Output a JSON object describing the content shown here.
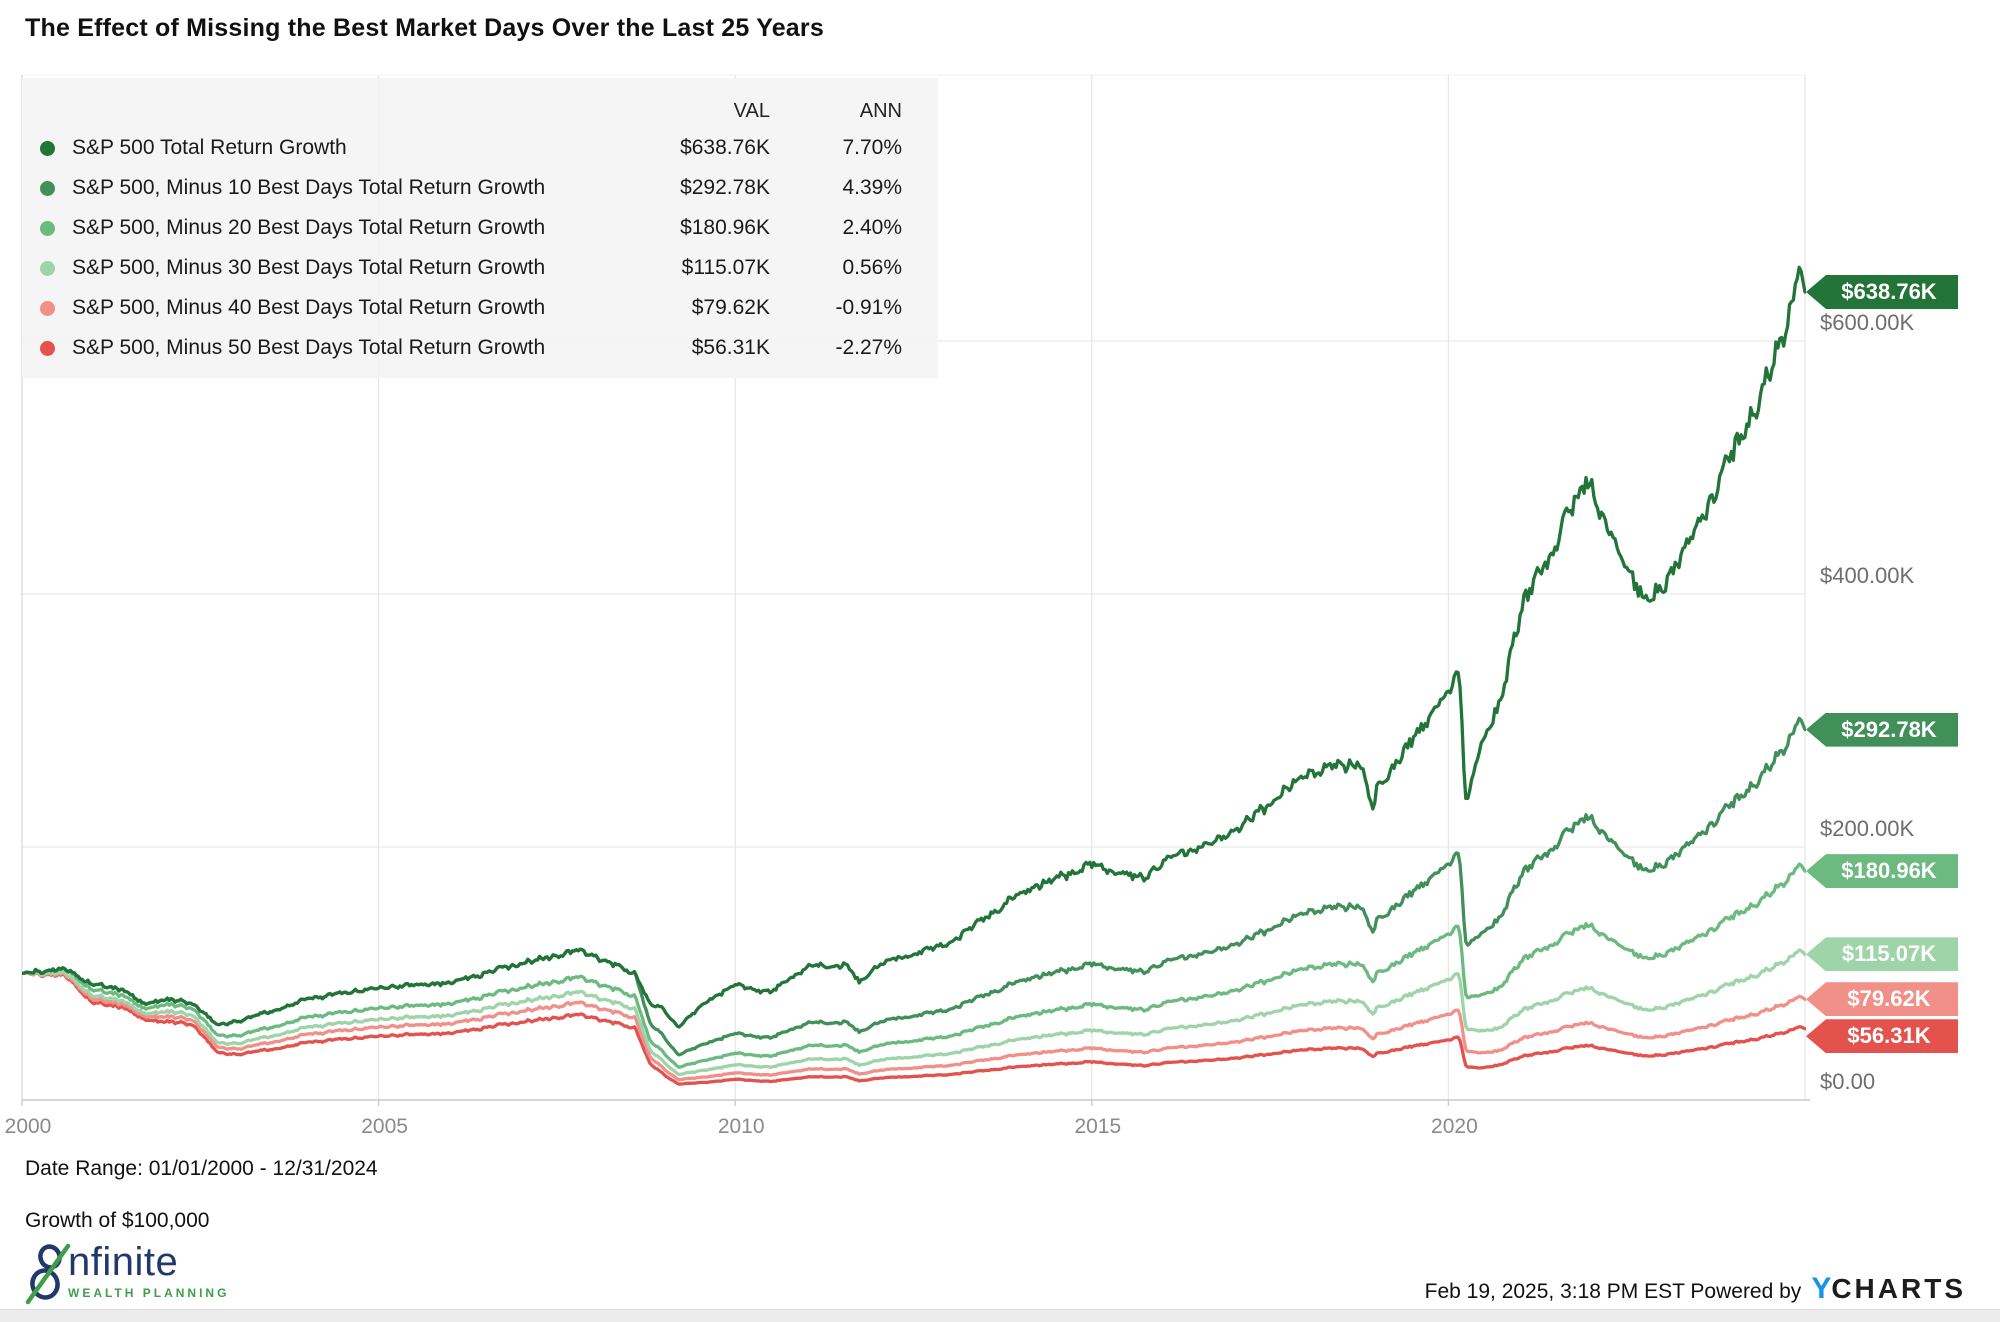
{
  "title": "The Effect of Missing the Best Market Days Over the Last 25 Years",
  "legend": {
    "col_val": "VAL",
    "col_ann": "ANN",
    "rows": [
      {
        "label": "S&P 500 Total Return Growth",
        "val": "$638.76K",
        "ann": "7.70%",
        "color": "#227438"
      },
      {
        "label": "S&P 500, Minus 10 Best Days Total Return Growth",
        "val": "$292.78K",
        "ann": "4.39%",
        "color": "#41905a"
      },
      {
        "label": "S&P 500, Minus 20 Best Days Total Return Growth",
        "val": "$180.96K",
        "ann": "2.40%",
        "color": "#6cba7f"
      },
      {
        "label": "S&P 500, Minus 30 Best Days Total Return Growth",
        "val": "$115.07K",
        "ann": "0.56%",
        "color": "#9fd3a8"
      },
      {
        "label": "S&P 500, Minus 40 Best Days Total Return Growth",
        "val": "$79.62K",
        "ann": "-0.91%",
        "color": "#f19089"
      },
      {
        "label": "S&P 500, Minus 50 Best Days Total Return Growth",
        "val": "$56.31K",
        "ann": "-2.27%",
        "color": "#e4524e"
      }
    ]
  },
  "footer": {
    "date_range": "Date Range: 01/01/2000 - 12/31/2024",
    "growth_label": "Growth of $100,000",
    "timestamp": "Feb 19, 2025, 3:18 PM EST Powered by",
    "ycharts_y": "Y",
    "ycharts_rest": "CHARTS"
  },
  "logo": {
    "brand": "infinite",
    "wordmark_display": "nfinite",
    "tagline": "WEALTH PLANNING",
    "navy": "#21386b",
    "green": "#3f9e4a"
  },
  "chart_data": {
    "type": "line",
    "title": "The Effect of Missing the Best Market Days Over the Last 25 Years",
    "subtitle": "Growth of $100,000, 01/01/2000 - 12/31/2024",
    "xlim": [
      2000,
      2025
    ],
    "ylim": [
      0,
      810
    ],
    "grid": true,
    "legend_position": "top-left",
    "x_axis": {
      "ticks": [
        {
          "label": "2000",
          "year": 2000
        },
        {
          "label": "2005",
          "year": 2005
        },
        {
          "label": "2010",
          "year": 2010
        },
        {
          "label": "2015",
          "year": 2015
        },
        {
          "label": "2020",
          "year": 2020
        }
      ]
    },
    "y_axis": {
      "ticks": [
        {
          "label": "$0.00",
          "value": 0
        },
        {
          "label": "$200.00K",
          "value": 200
        },
        {
          "label": "$400.00K",
          "value": 400
        },
        {
          "label": "$600.00K",
          "value": 600
        }
      ]
    },
    "grid_years": [
      2005,
      2010,
      2015,
      2020,
      2025
    ],
    "x_anchors": [
      2000.0,
      2000.6,
      2001.0,
      2001.45,
      2001.7,
      2002.0,
      2002.4,
      2002.75,
      2003.0,
      2003.6,
      2004.0,
      2005.0,
      2006.0,
      2007.0,
      2007.8,
      2008.0,
      2008.6,
      2008.8,
      2009.0,
      2009.2,
      2009.6,
      2010.0,
      2010.5,
      2011.0,
      2011.55,
      2011.75,
      2012.0,
      2013.0,
      2014.0,
      2015.0,
      2015.7,
      2016.0,
      2017.0,
      2018.0,
      2018.75,
      2018.95,
      2019.0,
      2019.5,
      2020.0,
      2020.15,
      2020.25,
      2020.45,
      2020.7,
      2021.0,
      2021.5,
      2021.95,
      2022.2,
      2022.5,
      2022.78,
      2023.0,
      2023.6,
      2024.0,
      2024.4,
      2024.75,
      2024.92,
      2025.0
    ],
    "series": [
      {
        "name": "S&P 500 Total Return Growth",
        "flag_label": "$638.76K",
        "final_value": 638.76,
        "ann_return_pct": 7.7,
        "color": "#227438",
        "values": [
          100,
          104,
          91,
          87,
          75,
          80,
          76,
          59,
          62,
          72,
          80,
          89,
          93,
          108,
          118,
          114,
          100,
          76,
          72,
          57,
          78,
          91,
          85,
          105,
          107,
          92,
          107,
          124,
          164,
          186,
          175,
          189,
          212,
          258,
          268,
          230,
          247,
          285,
          324,
          338,
          233,
          280,
          310,
          384,
          440,
          494,
          455,
          420,
          393,
          405,
          465,
          511,
          560,
          610,
          660,
          638.76
        ]
      },
      {
        "name": "S&P 500, Minus 10 Best Days Total Return Growth",
        "flag_label": "$292.78K",
        "final_value": 292.78,
        "ann_return_pct": 4.39,
        "color": "#41905a",
        "values": [
          100,
          104,
          91,
          87,
          75,
          80,
          76,
          59,
          62,
          72,
          80,
          89,
          93,
          108,
          118,
          114,
          100,
          60.8,
          50.4,
          35.3,
          45.0,
          52.5,
          49.0,
          60.6,
          61.7,
          53.1,
          61.7,
          71.5,
          94.6,
          107.3,
          101.0,
          109.1,
          122.3,
          148.9,
          154.6,
          132.7,
          142.5,
          164.4,
          187.0,
          195.0,
          121.2,
          131.0,
          142.1,
          176.0,
          201.7,
          226.4,
          208.6,
          192.5,
          180.2,
          185.7,
          213.2,
          234.2,
          256.7,
          279.6,
          302.5,
          292.78
        ]
      },
      {
        "name": "S&P 500, Minus 20 Best Days Total Return Growth",
        "flag_label": "$180.96K",
        "final_value": 180.96,
        "ann_return_pct": 2.4,
        "color": "#6cba7f",
        "values": [
          100,
          104,
          86.5,
          82.7,
          71.3,
          76.0,
          72.2,
          50.7,
          50.8,
          59.0,
          65.6,
          73.0,
          76.3,
          88.6,
          96.8,
          93.5,
          82.0,
          47.1,
          37.4,
          25.7,
          31.7,
          36.9,
          34.5,
          42.6,
          43.4,
          37.4,
          43.4,
          50.3,
          66.6,
          75.5,
          71.1,
          76.7,
          86.1,
          104.7,
          108.8,
          93.4,
          100.3,
          115.7,
          131.5,
          137.2,
          80.4,
          82.9,
          87.8,
          108.8,
          124.7,
          139.9,
          128.9,
          119.0,
          111.3,
          114.7,
          131.7,
          144.8,
          158.6,
          172.8,
          187.0,
          180.96
        ]
      },
      {
        "name": "S&P 500, Minus 30 Best Days Total Return Growth",
        "flag_label": "$115.07K",
        "final_value": 115.07,
        "ann_return_pct": 0.56,
        "color": "#9fd3a8",
        "values": [
          100,
          100.9,
          81.9,
          78.3,
          67.5,
          70.4,
          66.9,
          44.8,
          44.6,
          51.8,
          57.6,
          64.1,
          67.0,
          77.8,
          85.0,
          82.1,
          72.0,
          39.5,
          30.2,
          20.0,
          23.8,
          27.8,
          25.9,
          32.0,
          32.6,
          27.1,
          31.6,
          36.6,
          48.4,
          54.9,
          51.6,
          55.8,
          62.5,
          76.1,
          79.1,
          67.9,
          72.9,
          84.1,
          95.6,
          99.7,
          55.9,
          54.6,
          56.3,
          69.7,
          79.9,
          89.7,
          82.6,
          76.2,
          70.7,
          72.9,
          83.7,
          92.1,
          100.8,
          109.9,
          118.9,
          115.07
        ]
      },
      {
        "name": "S&P 500, Minus 40 Best Days Total Return Growth",
        "flag_label": "$79.62K",
        "final_value": 79.62,
        "ann_return_pct": -0.91,
        "color": "#f19089",
        "values": [
          100,
          99.8,
          79.2,
          75.7,
          65.3,
          66.4,
          63.1,
          41.3,
          40.3,
          46.8,
          52.0,
          57.9,
          60.5,
          70.2,
          76.7,
          74.1,
          65.0,
          34.2,
          24.8,
          16.0,
          18.3,
          21.4,
          19.6,
          24.2,
          24.6,
          20.2,
          23.5,
          27.3,
          36.1,
          40.9,
          37.6,
          40.6,
          45.6,
          55.5,
          57.6,
          48.3,
          51.9,
          59.9,
          68.0,
          71.0,
          38.4,
          37.2,
          38.7,
          47.9,
          54.9,
          61.7,
          56.8,
          52.4,
          48.9,
          50.4,
          57.9,
          63.6,
          69.7,
          76.0,
          82.2,
          79.62
        ]
      },
      {
        "name": "S&P 500, Minus 50 Best Days Total Return Growth",
        "flag_label": "$56.31K",
        "final_value": 56.31,
        "ann_return_pct": -2.27,
        "color": "#e4524e",
        "values": [
          100,
          98.8,
          76.4,
          73.1,
          63.0,
          62.4,
          59.3,
          37.2,
          36.0,
          41.0,
          45.6,
          50.7,
          53.0,
          61.6,
          67.3,
          65.0,
          57.0,
          28.9,
          20.2,
          12.5,
          14.0,
          16.4,
          14.6,
          18.1,
          18.4,
          14.9,
          17.3,
          20.1,
          26.6,
          30.1,
          27.1,
          29.3,
          32.9,
          40.0,
          41.5,
          34.3,
          36.8,
          42.5,
          47.6,
          49.7,
          26.1,
          25.3,
          27.4,
          33.9,
          38.9,
          43.6,
          40.2,
          37.1,
          34.6,
          35.6,
          40.9,
          45.0,
          49.3,
          53.7,
          58.1,
          56.31
        ]
      }
    ]
  }
}
